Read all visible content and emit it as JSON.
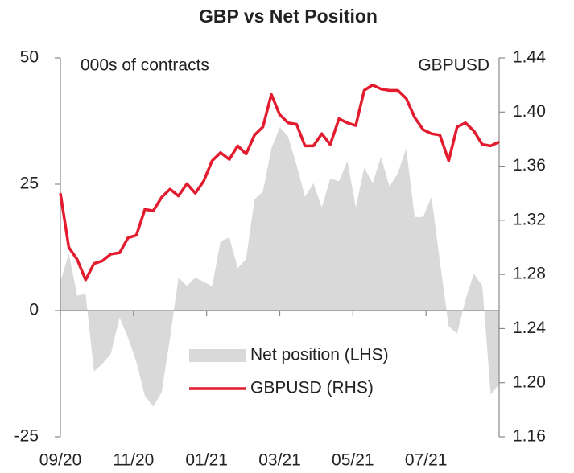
{
  "chart_data": {
    "type": "line",
    "title": "GBP vs Net Position",
    "annotations": [
      "000s of contracts",
      "GBPUSD"
    ],
    "xlim": [
      0,
      12
    ],
    "xticks": [
      {
        "value": 0,
        "label": "09/20"
      },
      {
        "value": 2,
        "label": "11/20"
      },
      {
        "value": 4,
        "label": "01/21"
      },
      {
        "value": 6,
        "label": "03/21"
      },
      {
        "value": 8,
        "label": "05/21"
      },
      {
        "value": 10,
        "label": "07/21"
      }
    ],
    "ylim": [
      -25,
      50
    ],
    "yticks": [
      50,
      25,
      0,
      -25
    ],
    "y2lim": [
      1.16,
      1.44
    ],
    "y2ticks": [
      1.44,
      {
        "value": 1.4,
        "label": "1.40"
      },
      1.36,
      1.32,
      1.28,
      1.24,
      {
        "value": 1.2,
        "label": "1.20"
      },
      1.16
    ],
    "x": [
      0,
      0.23,
      0.46,
      0.69,
      0.92,
      1.15,
      1.38,
      1.62,
      1.85,
      2.08,
      2.31,
      2.54,
      2.77,
      3,
      3.23,
      3.46,
      3.69,
      3.92,
      4.15,
      4.38,
      4.62,
      4.85,
      5.08,
      5.31,
      5.54,
      5.77,
      6,
      6.23,
      6.46,
      6.69,
      6.92,
      7.15,
      7.38,
      7.62,
      7.85,
      8.08,
      8.31,
      8.54,
      8.77,
      9,
      9.23,
      9.46,
      9.69,
      9.92,
      10.15,
      10.38,
      10.62,
      10.85,
      11.08,
      11.31,
      11.54,
      11.77,
      12
    ],
    "series": [
      {
        "name": "Net position (LHS)",
        "type": "area",
        "color": "#d9d9d9",
        "values": [
          5.7,
          11.3,
          2.9,
          3.3,
          -12.1,
          -10.5,
          -8.6,
          -1.4,
          -5.4,
          -10.2,
          -16.9,
          -19,
          -16.2,
          -5.4,
          6.5,
          4.9,
          6.5,
          5.7,
          4.8,
          13.7,
          14.5,
          8.4,
          10.2,
          22,
          23.6,
          32,
          36.3,
          34.4,
          28.8,
          22.5,
          25.2,
          20.4,
          26.1,
          25.6,
          29.6,
          20.4,
          28.3,
          25.2,
          30.4,
          24.5,
          27.2,
          32,
          18.5,
          18.5,
          22.5,
          9.7,
          -3.1,
          -4.6,
          2.2,
          7.3,
          4.9,
          -16.6,
          -14.6
        ]
      },
      {
        "name": "GBPUSD (RHS)",
        "type": "line",
        "axis": "y2",
        "color": "#e31b2e",
        "values": [
          1.34,
          1.3,
          1.291,
          1.276,
          1.288,
          1.29,
          1.295,
          1.296,
          1.307,
          1.309,
          1.328,
          1.327,
          1.337,
          1.343,
          1.338,
          1.347,
          1.34,
          1.349,
          1.364,
          1.37,
          1.365,
          1.375,
          1.369,
          1.383,
          1.389,
          1.413,
          1.398,
          1.392,
          1.391,
          1.375,
          1.375,
          1.384,
          1.376,
          1.395,
          1.392,
          1.39,
          1.416,
          1.42,
          1.417,
          1.416,
          1.416,
          1.41,
          1.396,
          1.387,
          1.384,
          1.383,
          1.364,
          1.389,
          1.392,
          1.386,
          1.376,
          1.375,
          1.378
        ]
      }
    ]
  }
}
